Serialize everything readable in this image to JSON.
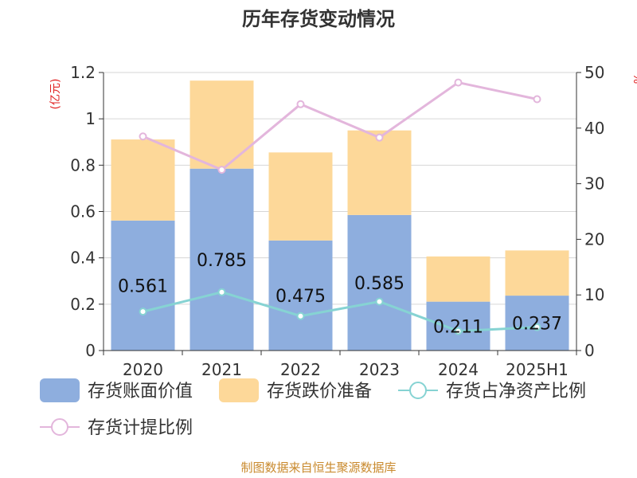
{
  "chart_data": {
    "type": "bar",
    "title": "历年存货变动情况",
    "categories": [
      "2020",
      "2021",
      "2022",
      "2023",
      "2024",
      "2025H1"
    ],
    "y_left": {
      "unit": "(亿元)",
      "range": [
        0,
        1.2
      ],
      "ticks": [
        "0",
        "0.2",
        "0.4",
        "0.6",
        "0.8",
        "1",
        "1.2"
      ]
    },
    "y_right": {
      "unit": "%",
      "range": [
        0,
        50
      ],
      "ticks": [
        "0",
        "10",
        "20",
        "30",
        "40",
        "50"
      ]
    },
    "grid": true,
    "legend_position": "bottom",
    "series": [
      {
        "name": "存货账面价值",
        "kind": "bar",
        "stack": "inv",
        "axis": "left",
        "color": "#8eaede",
        "values": [
          0.561,
          0.785,
          0.475,
          0.585,
          0.211,
          0.237
        ],
        "labels": [
          "0.561",
          "0.785",
          "0.475",
          "0.585",
          "0.211",
          "0.237"
        ]
      },
      {
        "name": "存货跌价准备",
        "kind": "bar",
        "stack": "inv",
        "axis": "left",
        "color": "#fdd899",
        "values": [
          0.35,
          0.38,
          0.38,
          0.365,
          0.195,
          0.195
        ]
      },
      {
        "name": "存货占净资产比例",
        "kind": "line",
        "axis": "right",
        "color": "#86d3d3",
        "values": [
          7.0,
          10.5,
          6.2,
          8.8,
          3.5,
          4.2
        ]
      },
      {
        "name": "存货计提比例",
        "kind": "line",
        "axis": "right",
        "color": "#e3b6dc",
        "values": [
          38.5,
          32.5,
          44.3,
          38.3,
          48.2,
          45.2
        ]
      }
    ],
    "source": "制图数据来自恒生聚源数据库"
  }
}
